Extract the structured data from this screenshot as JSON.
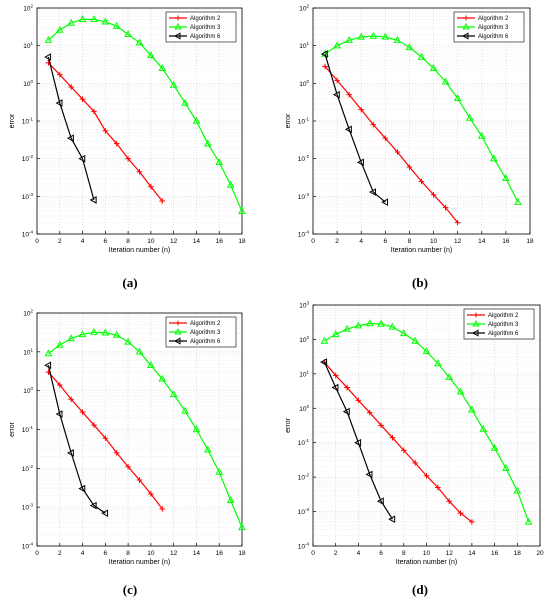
{
  "colors": {
    "alg2": "#ff0000",
    "alg3": "#00ff00",
    "alg6": "#000000",
    "grid": "#dcdcdc"
  },
  "chart_data": [
    {
      "type": "line",
      "caption": "(a)",
      "xlabel": "Iteration number (n)",
      "ylabel": "error",
      "xlim": [
        0,
        18
      ],
      "xticks": [
        0,
        2,
        4,
        6,
        8,
        10,
        12,
        14,
        16,
        18
      ],
      "ylim_log10": [
        -4,
        2
      ],
      "yscale": "log",
      "yticks": [
        "10^{-4}",
        "10^{-3}",
        "10^{-2}",
        "10^{-1}",
        "10^{0}",
        "10^{1}",
        "10^{2}"
      ],
      "grid": true,
      "legend": "top-right",
      "series": [
        {
          "name": "Algorithm 2",
          "marker": "plus",
          "color": "#ff0000",
          "x": [
            1,
            2,
            3,
            4,
            5,
            6,
            7,
            8,
            9,
            10,
            11
          ],
          "y": [
            3.5,
            1.7,
            0.8,
            0.38,
            0.18,
            0.055,
            0.025,
            0.01,
            0.0045,
            0.0018,
            0.00075
          ]
        },
        {
          "name": "Algorithm 3",
          "marker": "triangle-up",
          "color": "#00ff00",
          "x": [
            1,
            2,
            3,
            4,
            5,
            6,
            7,
            8,
            9,
            10,
            11,
            12,
            13,
            14,
            15,
            16,
            17,
            18
          ],
          "y": [
            14,
            26,
            40,
            50,
            50,
            43,
            33,
            20,
            12,
            5.5,
            2.5,
            0.9,
            0.3,
            0.1,
            0.025,
            0.008,
            0.002,
            0.0004
          ]
        },
        {
          "name": "Algorithm 6",
          "marker": "triangle-left",
          "color": "#000000",
          "x": [
            1,
            2,
            3,
            4,
            5
          ],
          "y": [
            5,
            0.3,
            0.035,
            0.01,
            0.0008
          ]
        }
      ]
    },
    {
      "type": "line",
      "caption": "(b)",
      "xlabel": "Iteration number (n)",
      "ylabel": "error",
      "xlim": [
        0,
        18
      ],
      "xticks": [
        0,
        2,
        4,
        6,
        8,
        10,
        12,
        14,
        16,
        18
      ],
      "ylim_log10": [
        -4,
        2
      ],
      "yscale": "log",
      "yticks": [
        "10^{-4}",
        "10^{-3}",
        "10^{-2}",
        "10^{-1}",
        "10^{0}",
        "10^{1}",
        "10^{2}"
      ],
      "grid": true,
      "legend": "top-right",
      "series": [
        {
          "name": "Algorithm 2",
          "marker": "plus",
          "color": "#ff0000",
          "x": [
            1,
            2,
            3,
            4,
            5,
            6,
            7,
            8,
            9,
            10,
            11,
            12
          ],
          "y": [
            2.8,
            1.2,
            0.5,
            0.2,
            0.08,
            0.035,
            0.015,
            0.006,
            0.0025,
            0.0011,
            0.0005,
            0.0002
          ]
        },
        {
          "name": "Algorithm 3",
          "marker": "triangle-up",
          "color": "#00ff00",
          "x": [
            1,
            2,
            3,
            4,
            5,
            6,
            7,
            8,
            9,
            10,
            11,
            12,
            13,
            14,
            15,
            16,
            17
          ],
          "y": [
            6,
            10,
            14,
            17,
            18,
            17,
            14,
            9,
            5,
            2.5,
            1.1,
            0.4,
            0.12,
            0.04,
            0.01,
            0.003,
            0.0007
          ]
        },
        {
          "name": "Algorithm 6",
          "marker": "triangle-left",
          "color": "#000000",
          "x": [
            1,
            2,
            3,
            4,
            5,
            6
          ],
          "y": [
            6,
            0.5,
            0.06,
            0.008,
            0.0013,
            0.0007
          ]
        }
      ]
    },
    {
      "type": "line",
      "caption": "(c)",
      "xlabel": "Iteration number (n)",
      "ylabel": "error",
      "xlim": [
        0,
        18
      ],
      "xticks": [
        0,
        2,
        4,
        6,
        8,
        10,
        12,
        14,
        16,
        18
      ],
      "ylim_log10": [
        -4,
        2
      ],
      "yscale": "log",
      "yticks": [
        "10^{-4}",
        "10^{-3}",
        "10^{-2}",
        "10^{-1}",
        "10^{0}",
        "10^{1}",
        "10^{2}"
      ],
      "grid": true,
      "legend": "top-right",
      "series": [
        {
          "name": "Algorithm 2",
          "marker": "plus",
          "color": "#ff0000",
          "x": [
            1,
            2,
            3,
            4,
            5,
            6,
            7,
            8,
            9,
            10,
            11
          ],
          "y": [
            3,
            1.4,
            0.6,
            0.28,
            0.13,
            0.06,
            0.025,
            0.011,
            0.005,
            0.0022,
            0.0009
          ]
        },
        {
          "name": "Algorithm 3",
          "marker": "triangle-up",
          "color": "#00ff00",
          "x": [
            1,
            2,
            3,
            4,
            5,
            6,
            7,
            8,
            9,
            10,
            11,
            12,
            13,
            14,
            15,
            16,
            17,
            18
          ],
          "y": [
            9,
            15,
            22,
            28,
            32,
            31,
            27,
            18,
            10,
            4.5,
            2,
            0.8,
            0.3,
            0.1,
            0.03,
            0.008,
            0.0015,
            0.0003
          ]
        },
        {
          "name": "Algorithm 6",
          "marker": "triangle-left",
          "color": "#000000",
          "x": [
            1,
            2,
            3,
            4,
            5,
            6
          ],
          "y": [
            4.5,
            0.25,
            0.025,
            0.003,
            0.0011,
            0.0007
          ]
        }
      ]
    },
    {
      "type": "line",
      "caption": "(d)",
      "xlabel": "Iteration number (n)",
      "ylabel": "error",
      "xlim": [
        0,
        20
      ],
      "xticks": [
        0,
        2,
        4,
        6,
        8,
        10,
        12,
        14,
        16,
        18,
        20
      ],
      "ylim_log10": [
        -4,
        3
      ],
      "yscale": "log",
      "yticks": [
        "10^{-4}",
        "10^{-3}",
        "10^{-2}",
        "10^{-1}",
        "10^{0}",
        "10^{1}",
        "10^{2}",
        "10^{3}"
      ],
      "grid": true,
      "legend": "top-right",
      "series": [
        {
          "name": "Algorithm 2",
          "marker": "plus",
          "color": "#ff0000",
          "x": [
            1,
            2,
            3,
            4,
            5,
            6,
            7,
            8,
            9,
            10,
            11,
            12,
            13,
            14
          ],
          "y": [
            22,
            9,
            4,
            1.7,
            0.75,
            0.32,
            0.14,
            0.06,
            0.026,
            0.011,
            0.005,
            0.002,
            0.0009,
            0.0005
          ]
        },
        {
          "name": "Algorithm 3",
          "marker": "triangle-up",
          "color": "#00ff00",
          "x": [
            1,
            2,
            3,
            4,
            5,
            6,
            7,
            8,
            9,
            10,
            11,
            12,
            13,
            14,
            15,
            16,
            17,
            18,
            19
          ],
          "y": [
            90,
            140,
            200,
            250,
            290,
            280,
            230,
            150,
            90,
            45,
            20,
            8,
            3,
            0.9,
            0.25,
            0.07,
            0.018,
            0.004,
            0.0005
          ]
        },
        {
          "name": "Algorithm 6",
          "marker": "triangle-left",
          "color": "#000000",
          "x": [
            1,
            2,
            3,
            4,
            5,
            6,
            7
          ],
          "y": [
            22,
            4,
            0.8,
            0.1,
            0.012,
            0.002,
            0.0006
          ]
        }
      ]
    }
  ]
}
